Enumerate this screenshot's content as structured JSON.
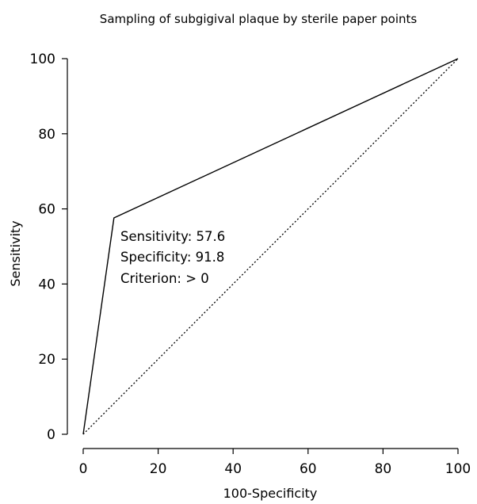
{
  "chart_data": {
    "type": "line",
    "title": "Sampling of subgigival plaque by sterile paper points",
    "xlabel": "100-Specificity",
    "ylabel": "Sensitivity",
    "xlim": [
      0,
      100
    ],
    "ylim": [
      0,
      100
    ],
    "xticks": [
      0,
      20,
      40,
      60,
      80,
      100
    ],
    "yticks": [
      0,
      20,
      40,
      60,
      80,
      100
    ],
    "grid": false,
    "series": [
      {
        "style": "solid",
        "x": [
          0,
          8.2,
          100
        ],
        "y": [
          0,
          57.6,
          100
        ]
      },
      {
        "style": "dotted",
        "x": [
          0,
          100
        ],
        "y": [
          0,
          100
        ]
      }
    ],
    "annotation": {
      "lines": [
        "Sensitivity: 57.6",
        "Specificity: 91.8",
        "Criterion: > 0"
      ]
    }
  }
}
